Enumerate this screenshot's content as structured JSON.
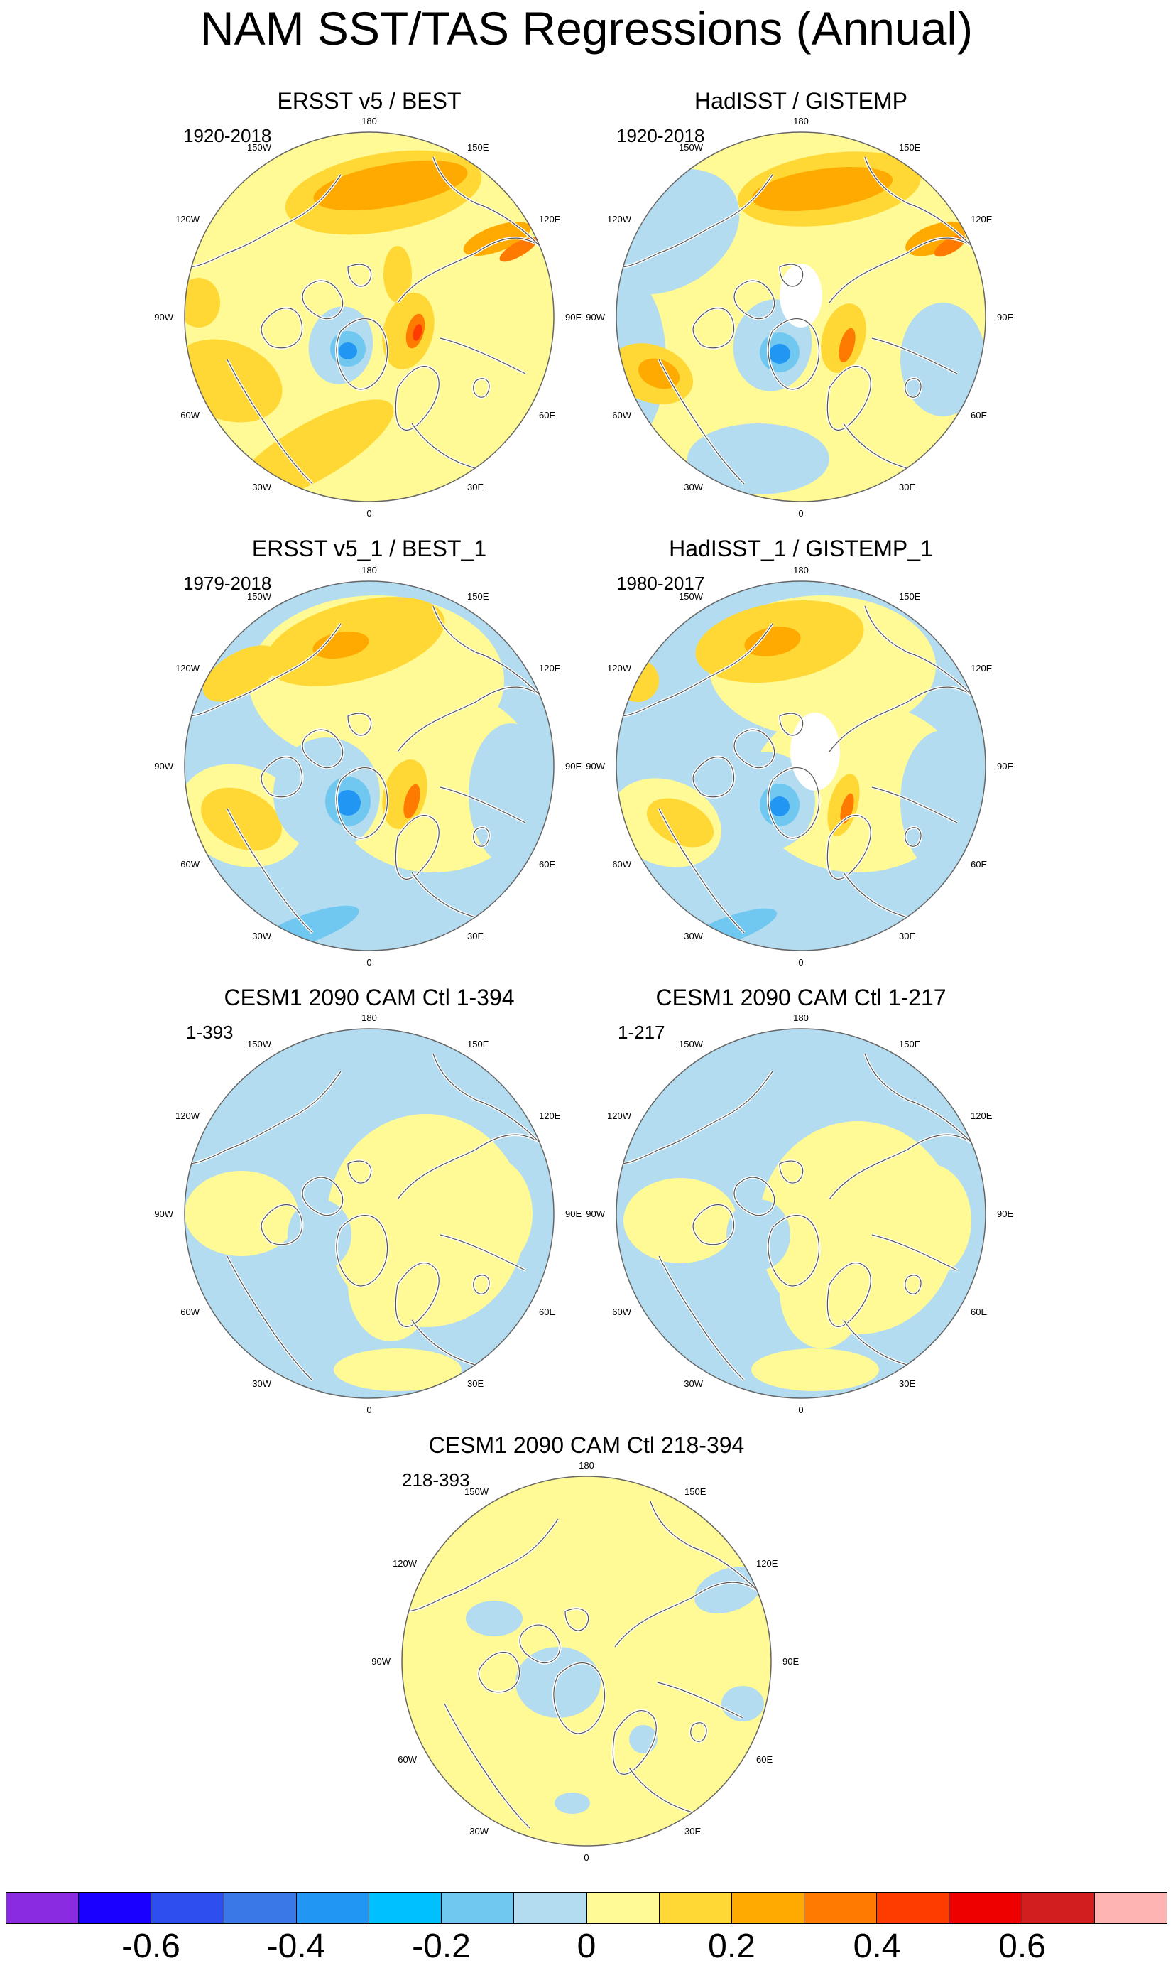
{
  "title": "NAM SST/TAS Regressions (Annual)",
  "lon_labels": [
    "180",
    "150E",
    "120E",
    "90E",
    "60E",
    "30E",
    "0",
    "30W",
    "60W",
    "90W",
    "120W",
    "150W"
  ],
  "panels": [
    {
      "title": "ERSST v5 / BEST",
      "period": "1920-2018"
    },
    {
      "title": "HadISST / GISTEMP",
      "period": "1920-2018"
    },
    {
      "title": "ERSST v5_1 / BEST_1",
      "period": "1979-2018"
    },
    {
      "title": "HadISST_1 / GISTEMP_1",
      "period": "1980-2017"
    },
    {
      "title": "CESM1 2090 CAM Ctl 1-394",
      "period": "1-393"
    },
    {
      "title": "CESM1 2090 CAM Ctl 1-217",
      "period": "1-217"
    },
    {
      "title": "CESM1 2090 CAM Ctl 218-394",
      "period": "218-393"
    }
  ],
  "colorbar": {
    "colors": [
      "#8a2be2",
      "#1a00ff",
      "#2e4ef0",
      "#3a78e8",
      "#2196f3",
      "#00c0ff",
      "#70c8f0",
      "#b4dcf0",
      "#fffa96",
      "#ffd836",
      "#ffaa00",
      "#ff7a00",
      "#ff3c00",
      "#ee0000",
      "#d21e1e",
      "#ffb4b4"
    ],
    "labels": [
      "-0.6",
      "-0.4",
      "-0.2",
      "0",
      "0.2",
      "0.4",
      "0.6"
    ],
    "label_values": [
      -0.6,
      -0.4,
      -0.2,
      0,
      0.2,
      0.4,
      0.6
    ],
    "min": -0.8,
    "max": 0.8
  }
}
